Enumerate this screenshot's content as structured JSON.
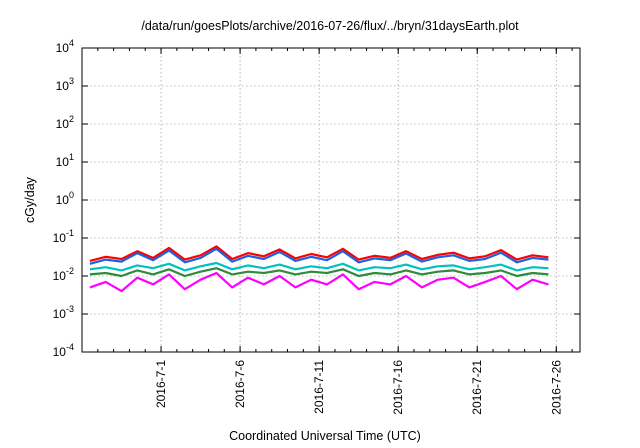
{
  "chart_data": {
    "type": "line",
    "title": "/data/run/goesPlots/archive/2016-07-26/flux/../bryn/31daysEarth.plot",
    "xlabel": "Coordinated Universal Time (UTC)",
    "ylabel": "cGy/day",
    "yscale": "log",
    "ylim": [
      0.0001,
      10000
    ],
    "xlim": [
      "2016-06-26",
      "2016-07-27T12:00"
    ],
    "grid": true,
    "legend": "none",
    "y_ticks": [
      {
        "base": "10",
        "exp": "4"
      },
      {
        "base": "10",
        "exp": "3"
      },
      {
        "base": "10",
        "exp": "2"
      },
      {
        "base": "10",
        "exp": "1"
      },
      {
        "base": "10",
        "exp": "0"
      },
      {
        "base": "10",
        "exp": "-1"
      },
      {
        "base": "10",
        "exp": "-2"
      },
      {
        "base": "10",
        "exp": "-3"
      },
      {
        "base": "10",
        "exp": "-4"
      }
    ],
    "x_ticks": [
      "2016-7-1",
      "2016-7-6",
      "2016-7-11",
      "2016-7-16",
      "2016-7-21",
      "2016-7-26"
    ],
    "series": [
      {
        "color": "#ff0000",
        "values": [
          0.025,
          0.032,
          0.028,
          0.045,
          0.03,
          0.055,
          0.027,
          0.035,
          0.06,
          0.028,
          0.04,
          0.033,
          0.05,
          0.029,
          0.038,
          0.031,
          0.052,
          0.027,
          0.034,
          0.03,
          0.045,
          0.028,
          0.036,
          0.041,
          0.029,
          0.033,
          0.048,
          0.027,
          0.035,
          0.031
        ]
      },
      {
        "color": "#1f5fe0",
        "values": [
          0.021,
          0.027,
          0.024,
          0.04,
          0.026,
          0.047,
          0.023,
          0.03,
          0.052,
          0.024,
          0.034,
          0.028,
          0.043,
          0.025,
          0.032,
          0.026,
          0.045,
          0.023,
          0.029,
          0.026,
          0.039,
          0.024,
          0.031,
          0.035,
          0.025,
          0.028,
          0.041,
          0.023,
          0.03,
          0.027
        ]
      },
      {
        "color": "#00c0c0",
        "values": [
          0.015,
          0.017,
          0.014,
          0.019,
          0.016,
          0.021,
          0.014,
          0.018,
          0.022,
          0.015,
          0.019,
          0.016,
          0.02,
          0.015,
          0.018,
          0.016,
          0.021,
          0.014,
          0.017,
          0.016,
          0.02,
          0.015,
          0.018,
          0.019,
          0.015,
          0.017,
          0.02,
          0.014,
          0.017,
          0.016
        ]
      },
      {
        "color": "#2e8b3a",
        "values": [
          0.011,
          0.012,
          0.01,
          0.014,
          0.011,
          0.015,
          0.01,
          0.013,
          0.016,
          0.011,
          0.013,
          0.012,
          0.014,
          0.011,
          0.013,
          0.012,
          0.015,
          0.01,
          0.012,
          0.011,
          0.014,
          0.011,
          0.013,
          0.014,
          0.011,
          0.012,
          0.014,
          0.01,
          0.012,
          0.011
        ]
      },
      {
        "color": "#ff00ff",
        "values": [
          0.005,
          0.007,
          0.004,
          0.009,
          0.006,
          0.011,
          0.0045,
          0.008,
          0.012,
          0.005,
          0.009,
          0.006,
          0.01,
          0.005,
          0.008,
          0.006,
          0.011,
          0.0045,
          0.007,
          0.006,
          0.01,
          0.005,
          0.008,
          0.009,
          0.005,
          0.007,
          0.01,
          0.0045,
          0.008,
          0.006
        ]
      }
    ]
  }
}
